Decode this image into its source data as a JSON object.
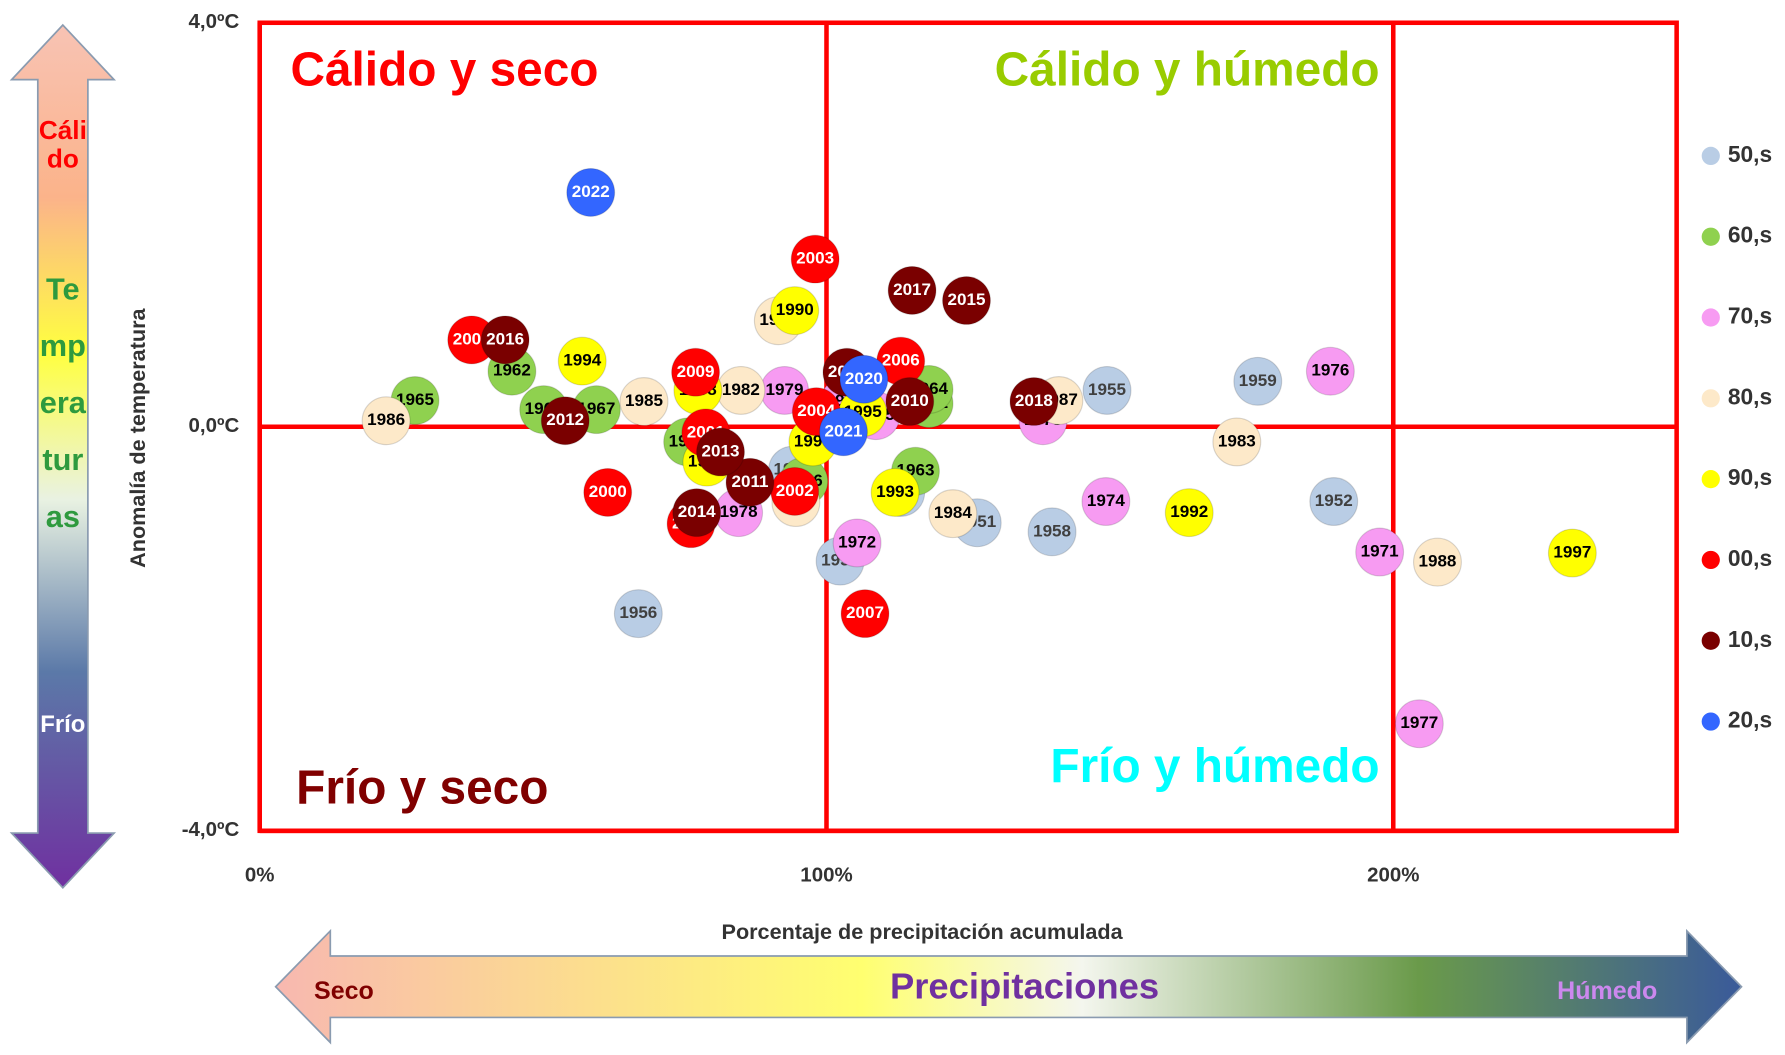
{
  "chart_data": {
    "type": "scatter",
    "xlabel": "Porcentaje de precipitación acumulada",
    "ylabel": "Anomalía de temperatura",
    "xlim": [
      0,
      250
    ],
    "xticks": [
      {
        "value": 0,
        "label": "0%"
      },
      {
        "value": 100,
        "label": "100%"
      },
      {
        "value": 200,
        "label": "200%"
      }
    ],
    "ylim": [
      -4,
      4
    ],
    "yticks": [
      {
        "value": -4,
        "label": "-4,0ºC"
      },
      {
        "value": 0,
        "label": "0,0ºC"
      },
      {
        "value": 4,
        "label": "4,0ºC"
      }
    ],
    "grid": true,
    "grid_color": "#ff0000",
    "legend": "right",
    "annotations": {
      "top_left": "Cálido y seco",
      "top_right": "Cálido y húmedo",
      "bottom_left": "Frío y seco",
      "bottom_right": "Frío y húmedo",
      "warm": "Cálido",
      "temperature": "Temperaturas",
      "cold": "Frío",
      "dry": "Seco",
      "precipitation": "Precipitaciones",
      "wet": "Húmedo"
    },
    "series": [
      {
        "name": "50,s",
        "color": "#b9cde5",
        "label_color": "#404040",
        "x": [
          126.6,
          189.5,
          113.1,
          102.4,
          149.5,
          66.8,
          94.0,
          139.8,
          176.1
        ],
        "values": [
          -0.95,
          -0.74,
          -0.65,
          -1.33,
          0.36,
          -1.85,
          -0.43,
          -1.04,
          0.45
        ],
        "labels": [
          1951,
          1952,
          1953,
          1954,
          1955,
          1956,
          1957,
          1958,
          1959
        ]
      },
      {
        "name": "60,s",
        "color": "#8fd14f",
        "label_color": "#000000",
        "x": [
          118.1,
          44.5,
          115.7,
          118.1,
          27.4,
          96.0,
          59.4,
          50.1,
          75.5
        ],
        "values": [
          0.23,
          0.55,
          -0.44,
          0.37,
          0.26,
          -0.54,
          0.17,
          0.17,
          -0.15
        ],
        "labels": [
          1961,
          1962,
          1963,
          1964,
          1965,
          1966,
          1967,
          1968,
          1969
        ]
      },
      {
        "name": "70,s",
        "color": "#f79bf2",
        "label_color": "#000000",
        "x": [
          103.2,
          197.6,
          105.4,
          138.2,
          149.3,
          108.7,
          188.9,
          204.6,
          84.5,
          92.6
        ],
        "values": [
          0.25,
          -1.24,
          -1.15,
          0.06,
          -0.74,
          0.11,
          0.55,
          -2.94,
          -0.85,
          0.36
        ],
        "labels": [
          1970,
          1971,
          1972,
          1973,
          1974,
          1975,
          1976,
          1977,
          1978,
          1979
        ]
      },
      {
        "name": "80,s",
        "color": "#fde9c9",
        "label_color": "#000000",
        "x": [
          94.6,
          84.9,
          172.4,
          122.3,
          67.8,
          22.3,
          141.0,
          207.8,
          91.5
        ],
        "values": [
          -0.75,
          0.36,
          -0.15,
          -0.86,
          0.25,
          0.06,
          0.26,
          -1.34,
          1.05
        ],
        "labels": [
          1980,
          1982,
          1983,
          1984,
          1985,
          1986,
          1987,
          1988,
          1989
        ]
      },
      {
        "name": "90,s",
        "color": "#ffff00",
        "label_color": "#000000",
        "x": [
          94.4,
          164.0,
          112.1,
          56.9,
          106.4,
          78.9,
          231.6,
          77.3,
          97.6
        ],
        "values": [
          1.15,
          -0.85,
          -0.65,
          0.65,
          0.14,
          -0.35,
          -1.25,
          0.36,
          -0.15
        ],
        "labels": [
          1990,
          1992,
          1993,
          1994,
          1995,
          1996,
          1997,
          1998,
          1999
        ]
      },
      {
        "name": "00,s",
        "color": "#ff0000",
        "label_color": "#ffffff",
        "x": [
          61.4,
          78.7,
          94.4,
          98.0,
          98.2,
          37.4,
          113.1,
          106.8,
          76.1,
          76.9
        ],
        "values": [
          -0.65,
          -0.06,
          -0.64,
          1.66,
          0.15,
          0.86,
          0.65,
          -1.85,
          -0.96,
          0.54
        ],
        "labels": [
          2000,
          2001,
          2002,
          2003,
          2004,
          2005,
          2006,
          2007,
          2008,
          2009
        ]
      },
      {
        "name": "10,s",
        "color": "#7a0000",
        "label_color": "#ffffff",
        "x": [
          114.7,
          86.5,
          53.9,
          81.3,
          77.1,
          124.7,
          43.3,
          115.1,
          136.6,
          103.6
        ],
        "values": [
          0.25,
          -0.55,
          0.06,
          -0.25,
          -0.85,
          1.25,
          0.86,
          1.35,
          0.25,
          0.54
        ],
        "labels": [
          2010,
          2011,
          2012,
          2013,
          2014,
          2015,
          2016,
          2017,
          2018,
          2019
        ]
      },
      {
        "name": "20,s",
        "color": "#3366ff",
        "label_color": "#ffffff",
        "x": [
          106.6,
          103.0,
          58.4
        ],
        "values": [
          0.47,
          -0.05,
          2.32
        ],
        "labels": [
          2020,
          2021,
          2022
        ]
      }
    ]
  }
}
